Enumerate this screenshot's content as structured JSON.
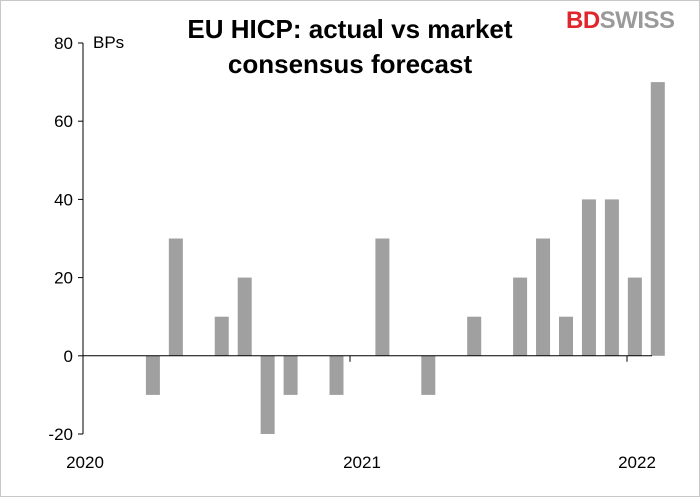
{
  "chart_data": {
    "type": "bar",
    "title_lines": [
      "EU HICP: actual vs market",
      "consensus forecast"
    ],
    "unit_label": "BPs",
    "ylim": [
      -20,
      80
    ],
    "yticks": [
      -20,
      0,
      20,
      40,
      60,
      80
    ],
    "xticks": [
      "2020",
      "2021",
      "2022"
    ],
    "categories": [
      "Jan 2020",
      "Feb 2020",
      "Mar 2020",
      "Apr 2020",
      "May 2020",
      "Jun 2020",
      "Jul 2020",
      "Aug 2020",
      "Sep 2020",
      "Oct 2020",
      "Nov 2020",
      "Dec 2020",
      "Jan 2021",
      "Feb 2021",
      "Mar 2021",
      "Apr 2021",
      "May 2021",
      "Jun 2021",
      "Jul 2021",
      "Aug 2021",
      "Sep 2021",
      "Oct 2021",
      "Nov 2021",
      "Dec 2021",
      "Jan 2022"
    ],
    "values": [
      0,
      0,
      -10,
      30,
      0,
      10,
      20,
      -20,
      -10,
      0,
      -10,
      0,
      30,
      0,
      -10,
      0,
      10,
      0,
      20,
      30,
      10,
      40,
      40,
      20,
      70
    ],
    "bar_color": "#a0a0a1",
    "grid": false
  },
  "logo": {
    "text_red": "BD",
    "text_gray": "SWISS"
  }
}
